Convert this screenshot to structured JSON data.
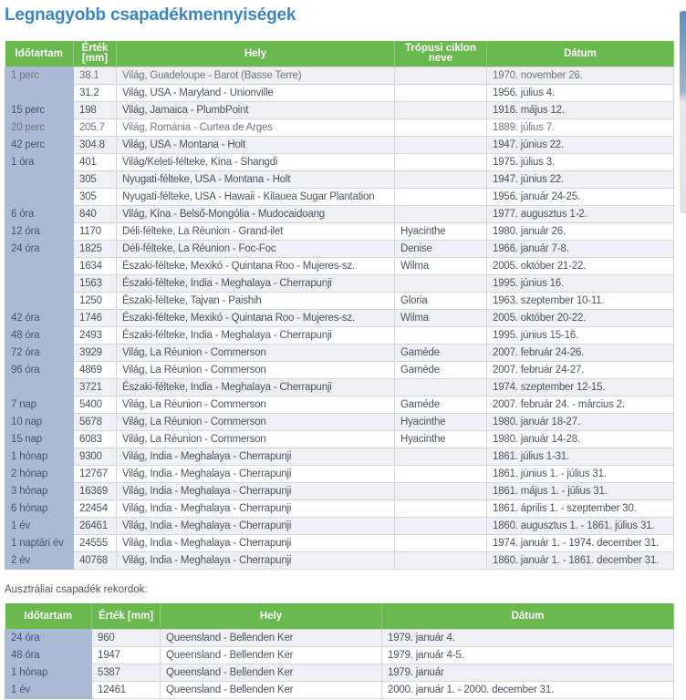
{
  "title": "Legnagyobb csapadékmennyiségek",
  "table1": {
    "headers": [
      "Időtartam",
      "Érték [mm]",
      "Hely",
      "Trópusi ciklon neve",
      "Dátum"
    ],
    "rows": [
      [
        "1 perc",
        "38.1",
        "Világ, Guadeloupe - Barot (Basse Terre)",
        "",
        "1970. november 26."
      ],
      [
        "",
        "31.2",
        "Világ, USA - Maryland - Unionville",
        "",
        "1956. július 4."
      ],
      [
        "15 perc",
        "198",
        "Világ, Jamaica - PlumbPoint",
        "",
        "1916. május 12."
      ],
      [
        "20 perc",
        "205.7",
        "Világ, Románia - Curtea de Arges",
        "",
        "1889. július 7."
      ],
      [
        "42 perc",
        "304.8",
        "Világ, USA - Montana - Holt",
        "",
        "1947. június 22."
      ],
      [
        "1 óra",
        "401",
        "Világ/Keleti-félteke, Kína - Shangdi",
        "",
        "1975. július 3."
      ],
      [
        "",
        "305",
        "Nyugati-félteke, USA - Montana - Holt",
        "",
        "1947. június 22."
      ],
      [
        "",
        "305",
        "Nyugati-félteke, USA - Hawaii - Kilauea Sugar Plantation",
        "",
        "1956. január 24-25."
      ],
      [
        "6 óra",
        "840",
        "Világ, Kína - Belső-Mongólia - Mudocaidoang",
        "",
        "1977. augusztus 1-2."
      ],
      [
        "12 óra",
        "1170",
        "Déli-félteke, La Réunion - Grand-ilet",
        "Hyacinthe",
        "1980. január 26."
      ],
      [
        "24 óra",
        "1825",
        "Déli-félteke, La Réunion - Foc-Foc",
        "Denise",
        "1966. január 7-8."
      ],
      [
        "",
        "1634",
        "Északi-félteke, Mexikó - Quintana Roo - Mujeres-sz.",
        "Wilma",
        "2005. október 21-22."
      ],
      [
        "",
        "1563",
        "Északi-félteke, India - Meghalaya - Cherrapunji",
        "",
        "1995. június 16."
      ],
      [
        "",
        "1250",
        "Északi-félteke, Tajvan - Paishih",
        "Gloria",
        "1963. szeptember 10-11."
      ],
      [
        "42 óra",
        "1746",
        "Északi-félteke, Mexikó - Quintana Roo - Mujeres-sz.",
        "Wilma",
        "2005. október 20-22."
      ],
      [
        "48 óra",
        "2493",
        "Északi-félteke, India - Meghalaya - Cherrapunji",
        "",
        "1995. június 15-16."
      ],
      [
        "72 óra",
        "3929",
        "Világ, La Réunion - Commerson",
        "Gamède",
        "2007. február 24-26."
      ],
      [
        "96 óra",
        "4869",
        "Világ, La Réunion - Commerson",
        "Gamède",
        "2007. február 24-27."
      ],
      [
        "",
        "3721",
        "Északi-félteke, India - Meghalaya - Cherrapunji",
        "",
        "1974. szeptember 12-15."
      ],
      [
        "7 nap",
        "5400",
        "Világ, La Réunion - Commerson",
        "Gaméde",
        "2007. február 24. - március 2."
      ],
      [
        "10 nap",
        "5678",
        "Világ, La Réunion - Commerson",
        "Hyacinthe",
        "1980. január 18-27."
      ],
      [
        "15 nap",
        "6083",
        "Világ, La Réunion - Commerson",
        "Hyacinthe",
        "1980. január 14-28."
      ],
      [
        "1 hónap",
        "9300",
        "Világ, India - Meghalaya - Cherrapunji",
        "",
        "1861. július 1-31."
      ],
      [
        "2 hónap",
        "12767",
        "Világ, India - Meghalaya - Cherrapunji",
        "",
        "1861. június 1. - július 31."
      ],
      [
        "3 hónap",
        "16369",
        "Világ, India - Meghalaya - Cherrapunji",
        "",
        "1861. május 1. - július 31."
      ],
      [
        "6 hónap",
        "22454",
        "Világ, India - Meghalaya - Cherrapunji",
        "",
        "1861. április 1. - szeptember 30."
      ],
      [
        "1 év",
        "26461",
        "Világ, India - Meghalaya - Cherrapunji",
        "",
        "1860. augusztus 1. - 1861. július 31."
      ],
      [
        "1 naptári év",
        "24555",
        "Világ, India - Meghalaya - Cherrapunji",
        "",
        "1974. január 1. - 1974. december 31."
      ],
      [
        "2 év",
        "40768",
        "Világ, India - Meghalaya - Cherrapunji",
        "",
        "1860. január 1. - 1861. december 31."
      ]
    ]
  },
  "note": "Ausztráliai csapadék rekordok:",
  "table2": {
    "headers": [
      "Időtartam",
      "Érték [mm]",
      "Hely",
      "Dátum"
    ],
    "rows": [
      [
        "24 óra",
        "960",
        "Queensland - Bellenden Ker",
        "1979. január 4."
      ],
      [
        "48 óra",
        "1947",
        "Queensland - Bellenden Ker",
        "1979. január 4-5."
      ],
      [
        "1 hónap",
        "5387",
        "Queensland - Bellenden Ker",
        "1979. január"
      ],
      [
        "1 év",
        "12461",
        "Queensland - Bellenden Ker",
        "2000. január 1. - 2000. december 31."
      ]
    ]
  },
  "colors": {
    "title": "#3d86c6",
    "header_bg": "#69b94f",
    "duration_bg": "#aabad4"
  }
}
